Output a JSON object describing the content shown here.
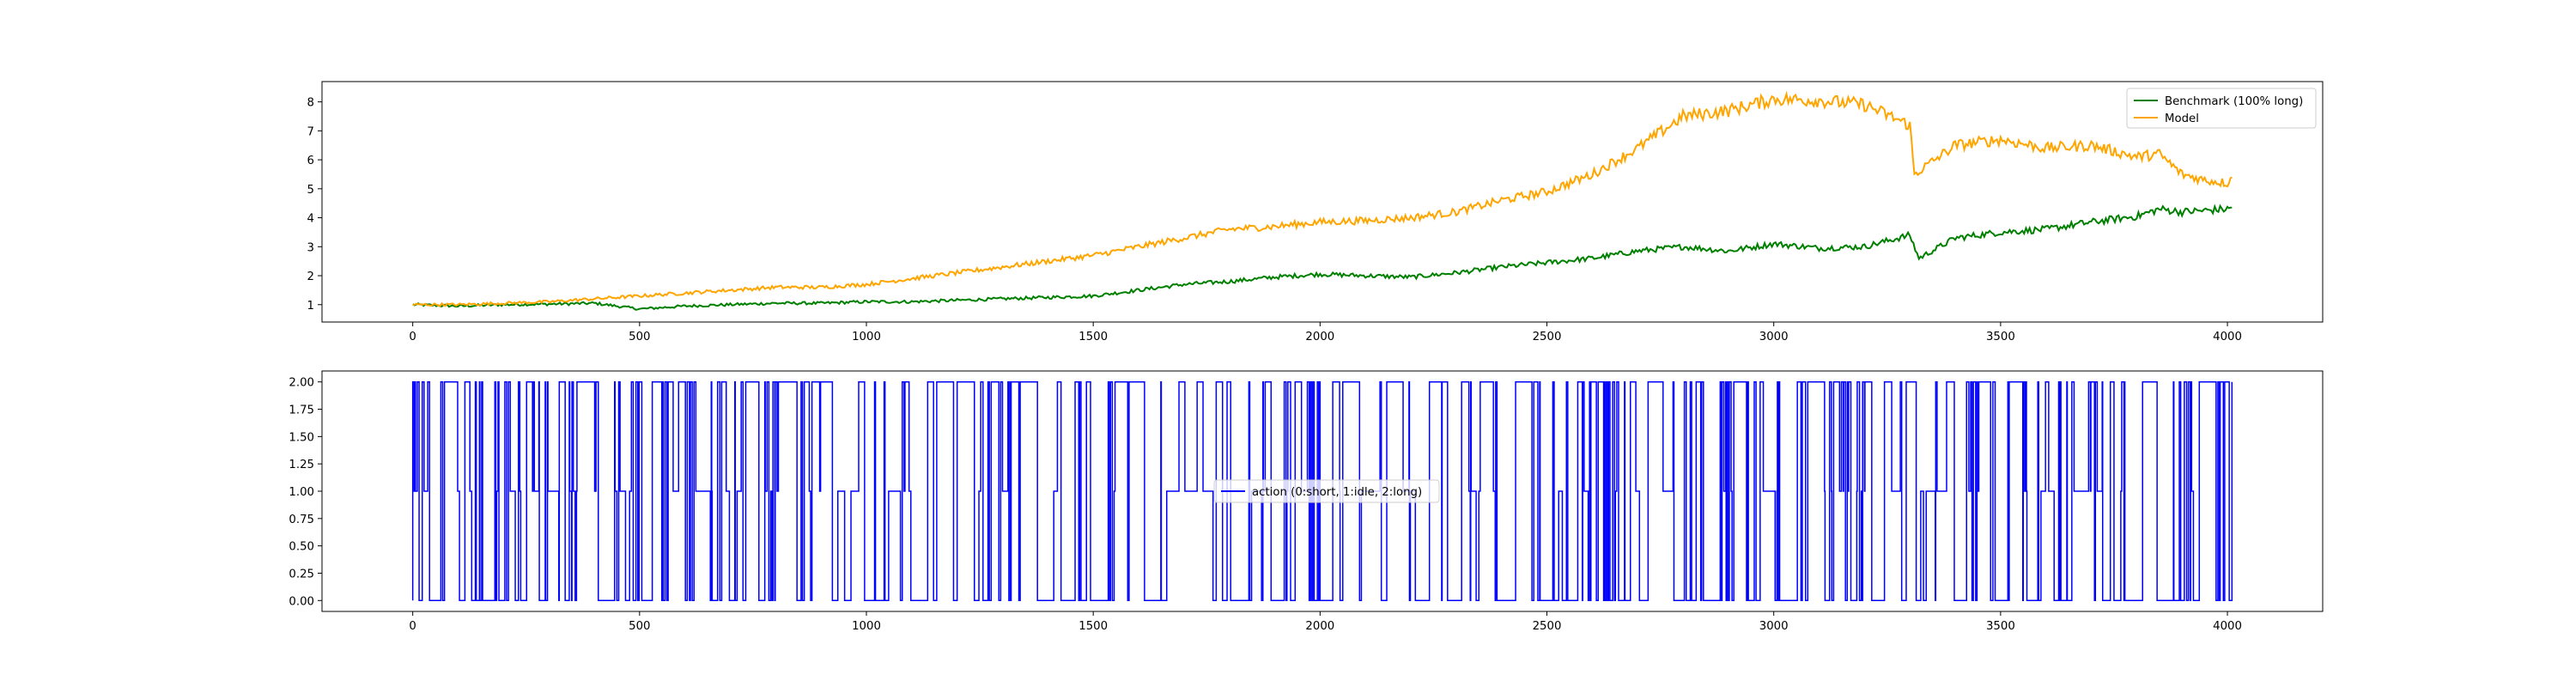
{
  "chart_data": [
    {
      "type": "line",
      "title": "",
      "xlabel": "",
      "ylabel": "",
      "xlim": [
        -200,
        4210
      ],
      "ylim": [
        0.4,
        8.7
      ],
      "x_ticks": [
        0,
        500,
        1000,
        1500,
        2000,
        2500,
        3000,
        3500,
        4000
      ],
      "y_ticks": [
        1,
        2,
        3,
        4,
        5,
        6,
        7,
        8
      ],
      "grid": false,
      "legend_position": "top-right",
      "series": [
        {
          "name": "Benchmark (100% long)",
          "color": "#008000",
          "x": [
            0,
            100,
            200,
            300,
            400,
            500,
            600,
            700,
            800,
            900,
            1000,
            1100,
            1200,
            1300,
            1400,
            1500,
            1600,
            1700,
            1800,
            1900,
            2000,
            2100,
            2200,
            2300,
            2400,
            2500,
            2600,
            2700,
            2800,
            2900,
            3000,
            3100,
            3200,
            3300,
            3320,
            3400,
            3500,
            3600,
            3700,
            3800,
            3850,
            3900,
            4000,
            4010
          ],
          "y": [
            1.0,
            0.95,
            1.0,
            1.02,
            1.05,
            0.85,
            0.95,
            1.0,
            1.05,
            1.05,
            1.1,
            1.1,
            1.15,
            1.2,
            1.25,
            1.3,
            1.5,
            1.7,
            1.8,
            1.95,
            2.05,
            2.0,
            1.95,
            2.1,
            2.3,
            2.45,
            2.6,
            2.85,
            3.0,
            2.85,
            3.1,
            2.95,
            3.0,
            3.4,
            2.6,
            3.3,
            3.5,
            3.6,
            3.85,
            4.05,
            4.3,
            4.2,
            4.3,
            4.35
          ]
        },
        {
          "name": "Model",
          "color": "#ffa500",
          "x": [
            0,
            100,
            200,
            300,
            400,
            500,
            600,
            700,
            800,
            900,
            1000,
            1100,
            1200,
            1300,
            1400,
            1500,
            1600,
            1700,
            1800,
            1900,
            2000,
            2100,
            2200,
            2300,
            2400,
            2500,
            2600,
            2700,
            2800,
            2900,
            3000,
            3100,
            3200,
            3300,
            3310,
            3400,
            3500,
            3600,
            3700,
            3800,
            3850,
            3900,
            3950,
            4000,
            4010
          ],
          "y": [
            1.0,
            1.0,
            1.05,
            1.1,
            1.2,
            1.3,
            1.4,
            1.5,
            1.6,
            1.6,
            1.7,
            1.9,
            2.1,
            2.3,
            2.5,
            2.7,
            3.0,
            3.3,
            3.6,
            3.7,
            3.85,
            3.9,
            4.0,
            4.2,
            4.6,
            4.9,
            5.5,
            6.4,
            7.5,
            7.7,
            8.1,
            8.05,
            7.9,
            7.2,
            5.5,
            6.5,
            6.7,
            6.4,
            6.5,
            6.1,
            6.2,
            5.5,
            5.3,
            5.2,
            5.4
          ]
        }
      ]
    },
    {
      "type": "line",
      "title": "",
      "xlabel": "",
      "ylabel": "",
      "xlim": [
        -200,
        4210
      ],
      "ylim": [
        -0.1,
        2.1
      ],
      "x_ticks": [
        0,
        500,
        1000,
        1500,
        2000,
        2500,
        3000,
        3500,
        4000
      ],
      "y_ticks": [
        "0.00",
        "0.25",
        "0.50",
        "0.75",
        "1.00",
        "1.25",
        "1.50",
        "1.75",
        "2.00"
      ],
      "grid": false,
      "legend_position": "center",
      "series": [
        {
          "name": "action (0:short, 1:idle, 2:long)",
          "color": "#0000ff",
          "x_range": [
            0,
            4010
          ],
          "values": [
            0,
            1,
            2
          ]
        }
      ]
    }
  ]
}
